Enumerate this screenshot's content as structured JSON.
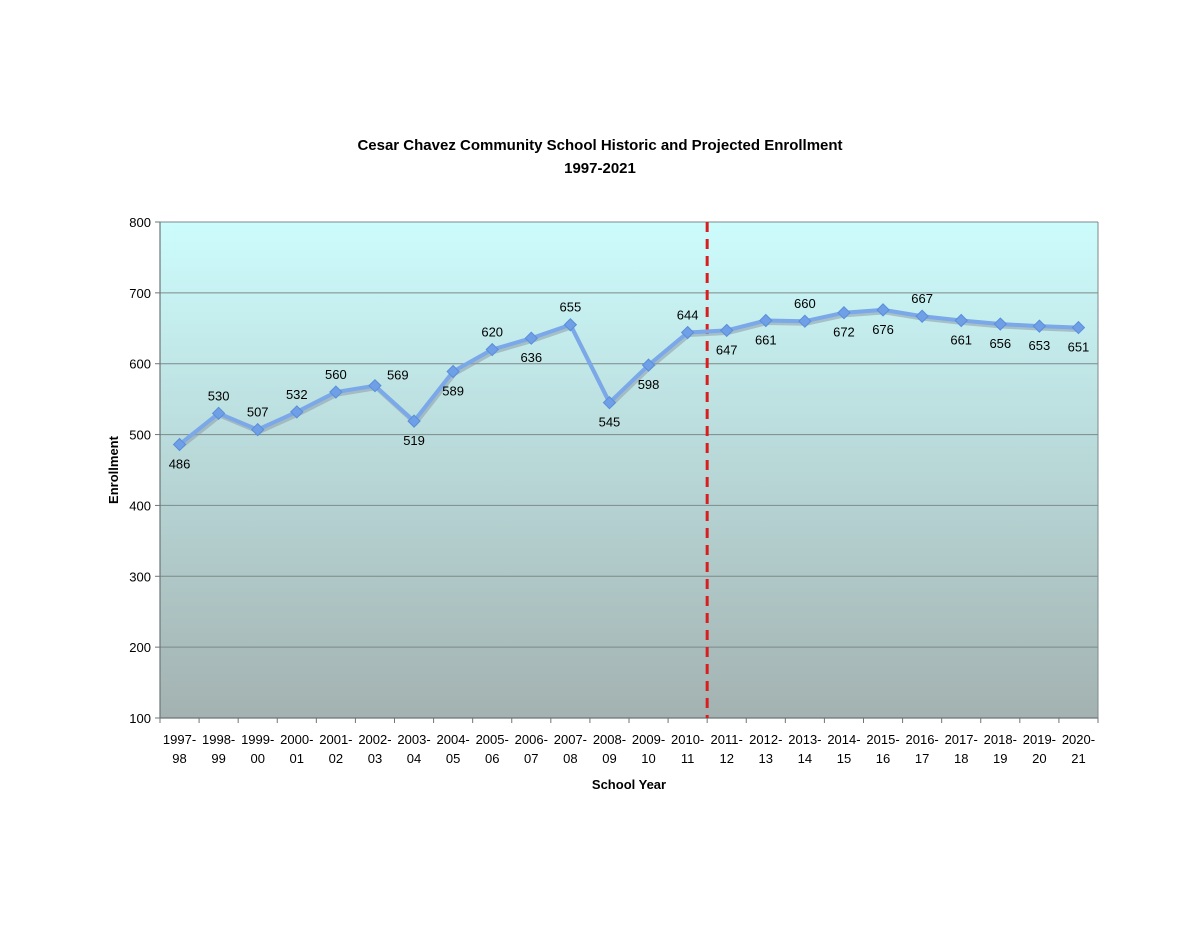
{
  "chart_data": {
    "type": "line",
    "title": "Cesar Chavez Community School Historic and Projected Enrollment",
    "subtitle": "1997-2021",
    "xlabel": "School Year",
    "ylabel": "Enrollment",
    "ylim": [
      100,
      800
    ],
    "yticks": [
      "100",
      "200",
      "300",
      "400",
      "500",
      "600",
      "700",
      "800"
    ],
    "categories": [
      [
        "1997-",
        "98"
      ],
      [
        "1998-",
        "99"
      ],
      [
        "1999-",
        "00"
      ],
      [
        "2000-",
        "01"
      ],
      [
        "2001-",
        "02"
      ],
      [
        "2002-",
        "03"
      ],
      [
        "2003-",
        "04"
      ],
      [
        "2004-",
        "05"
      ],
      [
        "2005-",
        "06"
      ],
      [
        "2006-",
        "07"
      ],
      [
        "2007-",
        "08"
      ],
      [
        "2008-",
        "09"
      ],
      [
        "2009-",
        "10"
      ],
      [
        "2010-",
        "11"
      ],
      [
        "2011-",
        "12"
      ],
      [
        "2012-",
        "13"
      ],
      [
        "2013-",
        "14"
      ],
      [
        "2014-",
        "15"
      ],
      [
        "2015-",
        "16"
      ],
      [
        "2016-",
        "17"
      ],
      [
        "2017-",
        "18"
      ],
      [
        "2018-",
        "19"
      ],
      [
        "2019-",
        "20"
      ],
      [
        "2020-",
        "21"
      ]
    ],
    "series": [
      {
        "values": [
          486,
          530,
          507,
          532,
          560,
          569,
          519,
          589,
          620,
          636,
          655,
          545,
          598,
          644,
          647,
          661,
          660,
          672,
          676,
          667,
          661,
          656,
          653,
          651
        ]
      }
    ],
    "label_positions": [
      "below",
      "above",
      "above",
      "above",
      "above",
      "right",
      "below",
      "below",
      "above",
      "below",
      "above",
      "below",
      "below",
      "above",
      "below",
      "below",
      "above",
      "below",
      "below",
      "above",
      "below",
      "below",
      "below",
      "below"
    ],
    "divider_after_category": "2010-11",
    "grid": true,
    "legend": "none",
    "colors": {
      "line": "#7aa8e8",
      "line_shadow": "#8d9aa8",
      "marker": "#6f9fe6",
      "plot_top": "#cdfcfd",
      "plot_bottom": "#a3b2b1",
      "divider": "#d81e1e",
      "gridline": "#7d8a8a",
      "axis": "#6b7676"
    }
  }
}
